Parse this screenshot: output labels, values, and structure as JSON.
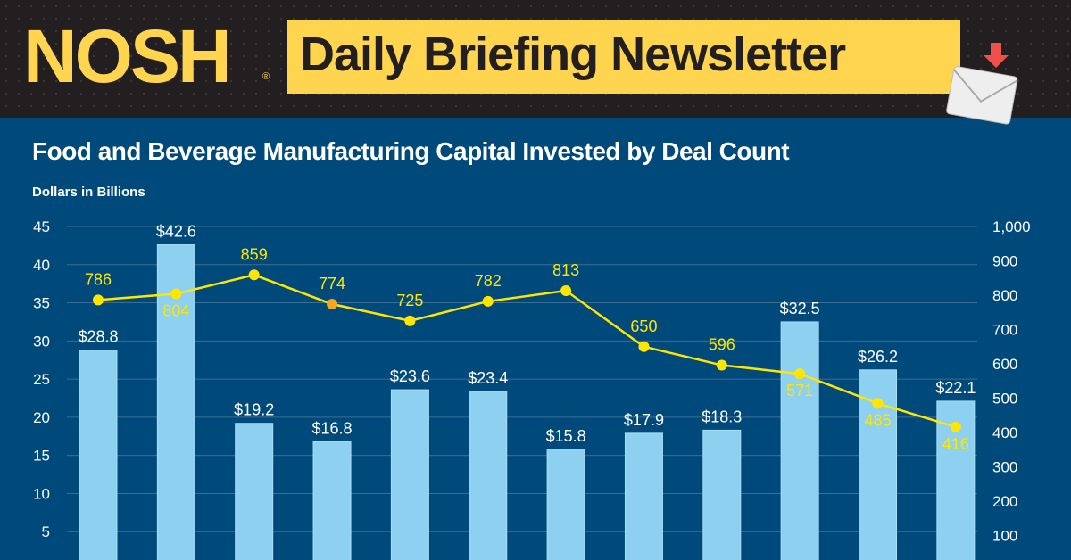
{
  "header": {
    "logo": "NOSH",
    "registered_mark": "®",
    "banner": "Daily Briefing Newsletter",
    "icon": "envelope-download-icon"
  },
  "colors": {
    "header_bg": "#231f20",
    "banner": "#ffd54f",
    "chart_bg": "#004a7b",
    "bar": "#8ed0f0",
    "line": "#ffe600",
    "highlight_point": "#f5a623"
  },
  "chart_data": {
    "type": "bar+line",
    "title": "Food and Beverage Manufacturing Capital Invested by Deal Count",
    "ylabel": "Dollars in Billions",
    "ylim": [
      0,
      45
    ],
    "y_ticks": [
      "5",
      "10",
      "15",
      "20",
      "25",
      "30",
      "35",
      "40",
      "45"
    ],
    "y2lim": [
      0,
      1000
    ],
    "y2_ticks": [
      "100",
      "200",
      "300",
      "400",
      "500",
      "600",
      "700",
      "800",
      "900",
      "1,000"
    ],
    "grid": true,
    "series": [
      {
        "type": "bar",
        "values": [
          28.8,
          42.6,
          19.2,
          16.8,
          23.6,
          23.4,
          15.8,
          17.9,
          18.3,
          32.5,
          26.2,
          22.1
        ],
        "labels": [
          "$28.8",
          "$42.6",
          "$19.2",
          "$16.8",
          "$23.6",
          "$23.4",
          "$15.8",
          "$17.9",
          "$18.3",
          "$32.5",
          "$26.2",
          "$22.1"
        ]
      },
      {
        "type": "line",
        "axis": "right",
        "values": [
          786,
          804,
          859,
          774,
          725,
          782,
          813,
          650,
          596,
          571,
          485,
          416
        ],
        "labels": [
          "786",
          "804",
          "859",
          "774",
          "725",
          "782",
          "813",
          "650",
          "596",
          "571",
          "485",
          "416"
        ],
        "highlight_index": 3
      }
    ]
  }
}
